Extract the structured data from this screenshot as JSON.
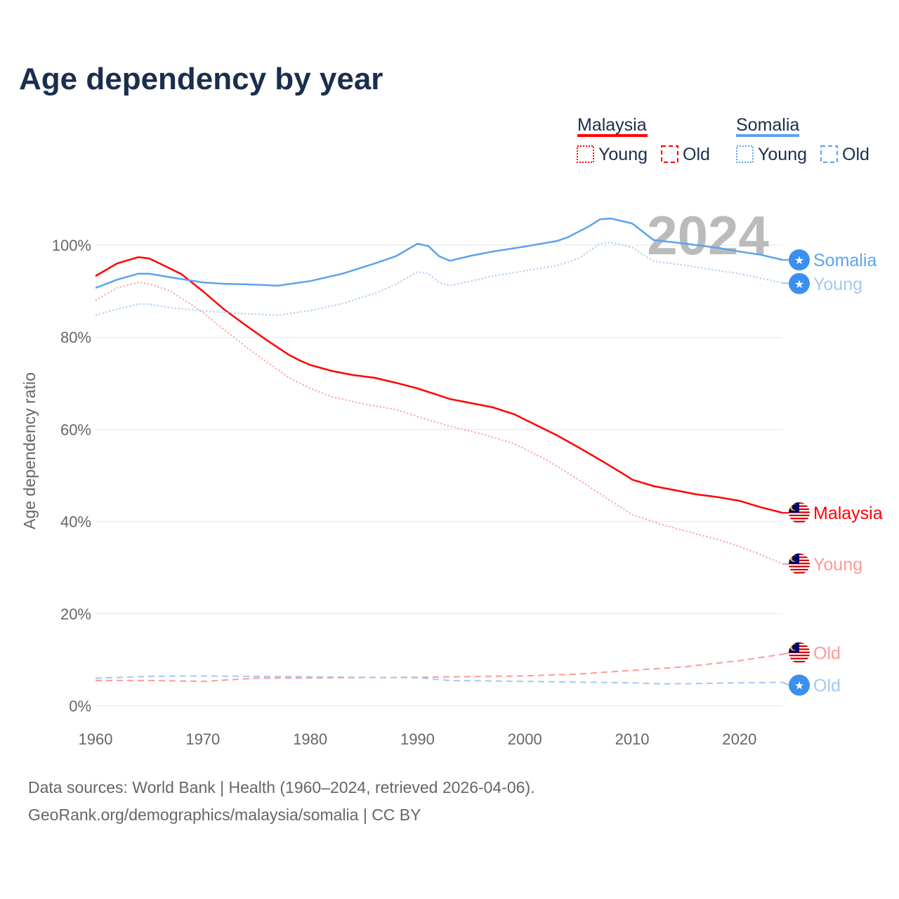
{
  "title": "Age dependency by year",
  "sources": {
    "line1": "Data sources: World Bank | Health (1960–2024, retrieved 2026-04-06).",
    "line2": "GeoRank.org/demographics/malaysia/somalia | CC BY"
  },
  "legend": {
    "groups": [
      {
        "country": "Malaysia",
        "color": "#ff0000",
        "young": "Young",
        "old": "Old"
      },
      {
        "country": "Somalia",
        "color": "#5ba3ec",
        "young": "Young",
        "old": "Old"
      }
    ]
  },
  "year_watermark": "2024",
  "chart_data": {
    "type": "line",
    "title": "Age dependency by year",
    "xlabel": "",
    "ylabel": "Age dependency ratio",
    "xlim": [
      1960,
      2024
    ],
    "ylim": [
      0,
      100
    ],
    "x_ticks": [
      "1960",
      "1970",
      "1980",
      "1990",
      "2000",
      "2010",
      "2020"
    ],
    "y_ticks": [
      "0%",
      "20%",
      "40%",
      "60%",
      "80%",
      "100%"
    ],
    "grid": true,
    "series": [
      {
        "name": "Malaysia",
        "end_label": "Malaysia",
        "color": "#ff0000",
        "style": "solid",
        "flag": "malaysia",
        "points": [
          [
            1960,
            93.3
          ],
          [
            1962,
            96
          ],
          [
            1964,
            97.4
          ],
          [
            1965,
            97.1
          ],
          [
            1966,
            96
          ],
          [
            1968,
            93.7
          ],
          [
            1970,
            90
          ],
          [
            1972,
            86
          ],
          [
            1974,
            82.6
          ],
          [
            1976,
            79.3
          ],
          [
            1978,
            76.2
          ],
          [
            1979,
            75
          ],
          [
            1980,
            74
          ],
          [
            1982,
            72.7
          ],
          [
            1984,
            71.8
          ],
          [
            1986,
            71.2
          ],
          [
            1988,
            70.1
          ],
          [
            1990,
            68.9
          ],
          [
            1992,
            67.4
          ],
          [
            1993,
            66.6
          ],
          [
            1995,
            65.7
          ],
          [
            1997,
            64.8
          ],
          [
            1999,
            63.3
          ],
          [
            2001,
            61
          ],
          [
            2003,
            58.7
          ],
          [
            2005,
            56.1
          ],
          [
            2007,
            53.4
          ],
          [
            2009,
            50.6
          ],
          [
            2010,
            49.1
          ],
          [
            2012,
            47.7
          ],
          [
            2014,
            46.8
          ],
          [
            2016,
            45.9
          ],
          [
            2018,
            45.3
          ],
          [
            2020,
            44.5
          ],
          [
            2022,
            43.1
          ],
          [
            2024,
            41.9
          ]
        ]
      },
      {
        "name": "Malaysia Young",
        "end_label": "Young",
        "color": "#ff9999",
        "style": "dotted",
        "flag": "malaysia",
        "points": [
          [
            1960,
            88
          ],
          [
            1962,
            90.7
          ],
          [
            1964,
            91.9
          ],
          [
            1965,
            91.6
          ],
          [
            1967,
            90
          ],
          [
            1970,
            85.4
          ],
          [
            1972,
            81.6
          ],
          [
            1975,
            76.2
          ],
          [
            1978,
            71.3
          ],
          [
            1980,
            68.9
          ],
          [
            1982,
            67.1
          ],
          [
            1985,
            65.5
          ],
          [
            1988,
            64.3
          ],
          [
            1990,
            62.8
          ],
          [
            1993,
            60.7
          ],
          [
            1996,
            59
          ],
          [
            1999,
            56.9
          ],
          [
            2002,
            53.4
          ],
          [
            2005,
            49.1
          ],
          [
            2008,
            44.5
          ],
          [
            2010,
            41.5
          ],
          [
            2013,
            39.2
          ],
          [
            2016,
            37.3
          ],
          [
            2018,
            36.1
          ],
          [
            2020,
            34.6
          ],
          [
            2022,
            32.8
          ],
          [
            2024,
            30.8
          ]
        ]
      },
      {
        "name": "Malaysia Old",
        "end_label": "Old",
        "color": "#ff9999",
        "style": "dashed",
        "flag": "malaysia",
        "points": [
          [
            1960,
            5.5
          ],
          [
            1965,
            5.5
          ],
          [
            1970,
            5.3
          ],
          [
            1975,
            6.0
          ],
          [
            1990,
            6.2
          ],
          [
            2000,
            6.5
          ],
          [
            2005,
            6.9
          ],
          [
            2010,
            7.7
          ],
          [
            2015,
            8.5
          ],
          [
            2020,
            9.8
          ],
          [
            2024,
            11.2
          ]
        ]
      },
      {
        "name": "Somalia",
        "end_label": "Somalia",
        "color": "#5ba3ec",
        "style": "solid",
        "flag": "somalia",
        "points": [
          [
            1960,
            90.7
          ],
          [
            1962,
            92.5
          ],
          [
            1964,
            93.8
          ],
          [
            1965,
            93.8
          ],
          [
            1967,
            93
          ],
          [
            1970,
            91.9
          ],
          [
            1972,
            91.6
          ],
          [
            1974,
            91.5
          ],
          [
            1977,
            91.2
          ],
          [
            1980,
            92.2
          ],
          [
            1983,
            93.8
          ],
          [
            1986,
            96
          ],
          [
            1988,
            97.6
          ],
          [
            1990,
            100.3
          ],
          [
            1991,
            99.8
          ],
          [
            1992,
            97.6
          ],
          [
            1993,
            96.6
          ],
          [
            1995,
            97.7
          ],
          [
            1997,
            98.6
          ],
          [
            2000,
            99.7
          ],
          [
            2003,
            100.9
          ],
          [
            2004,
            101.7
          ],
          [
            2006,
            104.1
          ],
          [
            2007,
            105.6
          ],
          [
            2008,
            105.8
          ],
          [
            2010,
            104.7
          ],
          [
            2012,
            101.1
          ],
          [
            2015,
            100.3
          ],
          [
            2018,
            99.4
          ],
          [
            2020,
            98.6
          ],
          [
            2022,
            97.9
          ],
          [
            2024,
            96.8
          ]
        ]
      },
      {
        "name": "Somalia Young",
        "end_label": "Young",
        "color": "#a3c9f3",
        "style": "dotted",
        "flag": "somalia",
        "points": [
          [
            1960,
            84.8
          ],
          [
            1962,
            86.1
          ],
          [
            1964,
            87.2
          ],
          [
            1965,
            87.2
          ],
          [
            1967,
            86.4
          ],
          [
            1970,
            85.7
          ],
          [
            1973,
            85.2
          ],
          [
            1977,
            84.8
          ],
          [
            1980,
            85.8
          ],
          [
            1983,
            87.3
          ],
          [
            1986,
            89.5
          ],
          [
            1988,
            91.5
          ],
          [
            1990,
            94.2
          ],
          [
            1991,
            93.8
          ],
          [
            1992,
            91.9
          ],
          [
            1993,
            91.2
          ],
          [
            1995,
            92.2
          ],
          [
            1997,
            93.3
          ],
          [
            2000,
            94.4
          ],
          [
            2003,
            95.6
          ],
          [
            2005,
            97.1
          ],
          [
            2007,
            100.3
          ],
          [
            2008,
            100.6
          ],
          [
            2010,
            99.5
          ],
          [
            2012,
            96.5
          ],
          [
            2015,
            95.6
          ],
          [
            2018,
            94.5
          ],
          [
            2020,
            93.8
          ],
          [
            2022,
            92.8
          ],
          [
            2024,
            91.8
          ]
        ]
      },
      {
        "name": "Somalia Old",
        "end_label": "Old",
        "color": "#a3c9f3",
        "style": "dashed",
        "flag": "somalia",
        "points": [
          [
            1960,
            6.0
          ],
          [
            1965,
            6.4
          ],
          [
            1970,
            6.5
          ],
          [
            1980,
            6.3
          ],
          [
            1990,
            6.1
          ],
          [
            1993,
            5.5
          ],
          [
            2000,
            5.3
          ],
          [
            2010,
            5.0
          ],
          [
            2012,
            4.8
          ],
          [
            2015,
            4.8
          ],
          [
            2020,
            5.0
          ],
          [
            2024,
            5.1
          ]
        ]
      }
    ]
  }
}
